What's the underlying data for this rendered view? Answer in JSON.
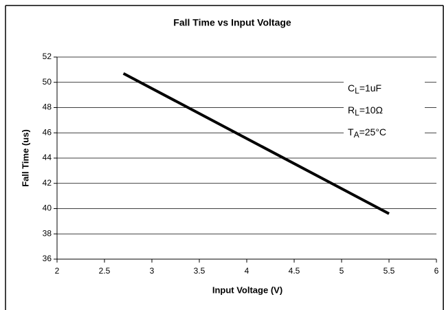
{
  "chart_data": {
    "type": "line",
    "title": "Fall Time vs Input Voltage",
    "x_label": "Input Voltage (V)",
    "y_label": "Fall Time (us)",
    "x": [
      2.7,
      5.5
    ],
    "series": [
      {
        "name": "Fall Time",
        "color": "#000000",
        "values": [
          50.7,
          39.6
        ]
      }
    ],
    "xlim": [
      2,
      6
    ],
    "xticks": [
      2,
      2.5,
      3,
      3.5,
      4,
      4.5,
      5,
      5.5,
      6
    ],
    "ylim": [
      36,
      52
    ],
    "yticks": [
      36,
      38,
      40,
      42,
      44,
      46,
      48,
      50,
      52
    ],
    "grid": true,
    "annotations": [
      [
        "C",
        "L",
        "=1uF"
      ],
      [
        "R",
        "L",
        "=10Ω"
      ],
      [
        "T",
        "A",
        "=25°C"
      ]
    ]
  }
}
